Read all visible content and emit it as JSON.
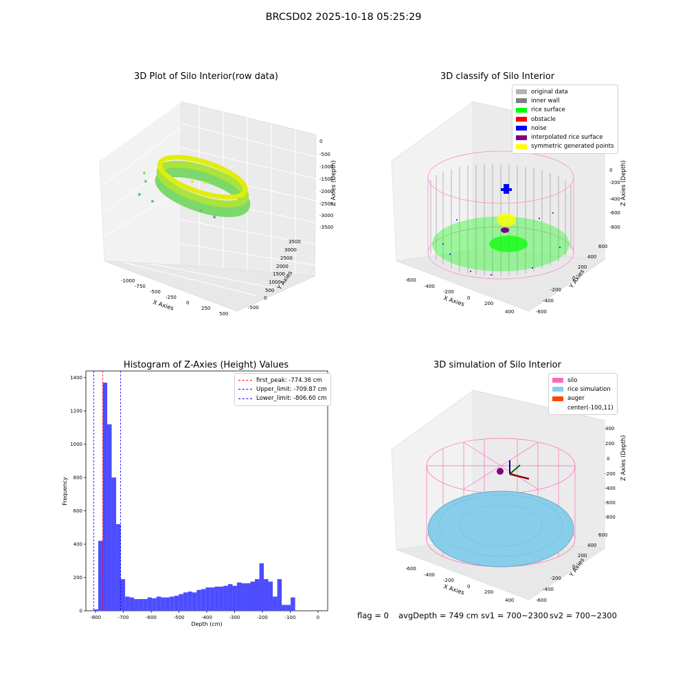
{
  "suptitle": "BRCSD02 2025-10-18 05:25:29",
  "panels": {
    "raw": {
      "title": "3D Plot of Silo Interior(row data)",
      "xlabel": "X Axies",
      "ylabel": "Y Axies",
      "zlabel": "Z Axies (Depth)",
      "x_ticks": [
        "-1000",
        "-750",
        "-500",
        "-250",
        "0",
        "250",
        "500"
      ],
      "y_ticks": [
        "-500",
        "0",
        "500",
        "1000",
        "1500",
        "2000",
        "2500",
        "3000",
        "3500"
      ],
      "z_ticks": [
        "0",
        "-500",
        "-1000",
        "-1500",
        "-2000",
        "-2500",
        "-3000",
        "-3500"
      ]
    },
    "classify": {
      "title": "3D classify of Silo Interior",
      "xlabel": "X Axies",
      "ylabel": "Y Axies",
      "zlabel": "Z Axies (Depth)",
      "x_ticks": [
        "-600",
        "-400",
        "-200",
        "0",
        "200",
        "400"
      ],
      "y_ticks": [
        "-600",
        "-400",
        "-200",
        "0",
        "200",
        "400",
        "600"
      ],
      "z_ticks": [
        "200",
        "0",
        "-200",
        "-400",
        "-600",
        "-800"
      ],
      "legend": [
        {
          "label": "original data",
          "color": "#b3b3b3"
        },
        {
          "label": "inner wall",
          "color": "#808080"
        },
        {
          "label": "rice surface",
          "color": "#00ff00"
        },
        {
          "label": "obstacle",
          "color": "#ff0000"
        },
        {
          "label": "noise",
          "color": "#0000ff"
        },
        {
          "label": "interpolated rice surface",
          "color": "#800080"
        },
        {
          "label": "symmetric generated points",
          "color": "#ffff00"
        }
      ]
    },
    "simulation": {
      "title": "3D simulation of Silo Interior",
      "xlabel": "X Axies",
      "ylabel": "Y Axies",
      "zlabel": "Z Axies (Depth)",
      "x_ticks": [
        "-600",
        "-400",
        "-200",
        "0",
        "200",
        "400"
      ],
      "y_ticks": [
        "-600",
        "-400",
        "-200",
        "0",
        "200",
        "400",
        "600"
      ],
      "z_ticks": [
        "400",
        "200",
        "0",
        "-200",
        "-400",
        "-600",
        "-800"
      ],
      "legend": [
        {
          "label": "silo",
          "color": "#ff69b4"
        },
        {
          "label": "rice simulation",
          "color": "#87ceeb"
        },
        {
          "label": "auger",
          "color": "#ff4500"
        },
        {
          "label": "center(-100,11)",
          "color": ""
        }
      ]
    }
  },
  "chart_data": {
    "type": "bar",
    "title": "Histogram of Z-Axies (Height) Values",
    "xlabel": "Depth (cm)",
    "ylabel": "Frequency",
    "xlim": [
      -835,
      35
    ],
    "ylim": [
      0,
      1440
    ],
    "x_ticks": [
      -800,
      -700,
      -600,
      -500,
      -400,
      -300,
      -200,
      -100,
      0
    ],
    "y_ticks": [
      0,
      200,
      400,
      600,
      800,
      1000,
      1200,
      1400
    ],
    "bin_width": 16.1,
    "bin_start": -806.6,
    "bar_color": "#4d4dff",
    "values": [
      8,
      420,
      1370,
      1120,
      800,
      520,
      190,
      85,
      80,
      70,
      70,
      70,
      80,
      75,
      85,
      80,
      80,
      85,
      90,
      100,
      110,
      115,
      110,
      125,
      130,
      140,
      140,
      145,
      145,
      150,
      160,
      150,
      170,
      165,
      165,
      175,
      190,
      285,
      190,
      175,
      85,
      190,
      35,
      35,
      80
    ],
    "vlines": [
      {
        "label": "first_peak: -774.36 cm",
        "value": -774.36,
        "color": "#ff0000"
      },
      {
        "label": "Upper_limit: -709.87 cm",
        "value": -709.87,
        "color": "#0000ff"
      },
      {
        "label": "Lower_limit: -806.60 cm",
        "value": -806.6,
        "color": "#0000ff"
      }
    ],
    "legend_placement": "top-right",
    "grid": false
  },
  "footer": {
    "flag": "flag = 0",
    "avg": "avgDepth = 749 cm",
    "sv1": "sv1 = 700~2300",
    "sv2": "sv2 = 700~2300"
  }
}
